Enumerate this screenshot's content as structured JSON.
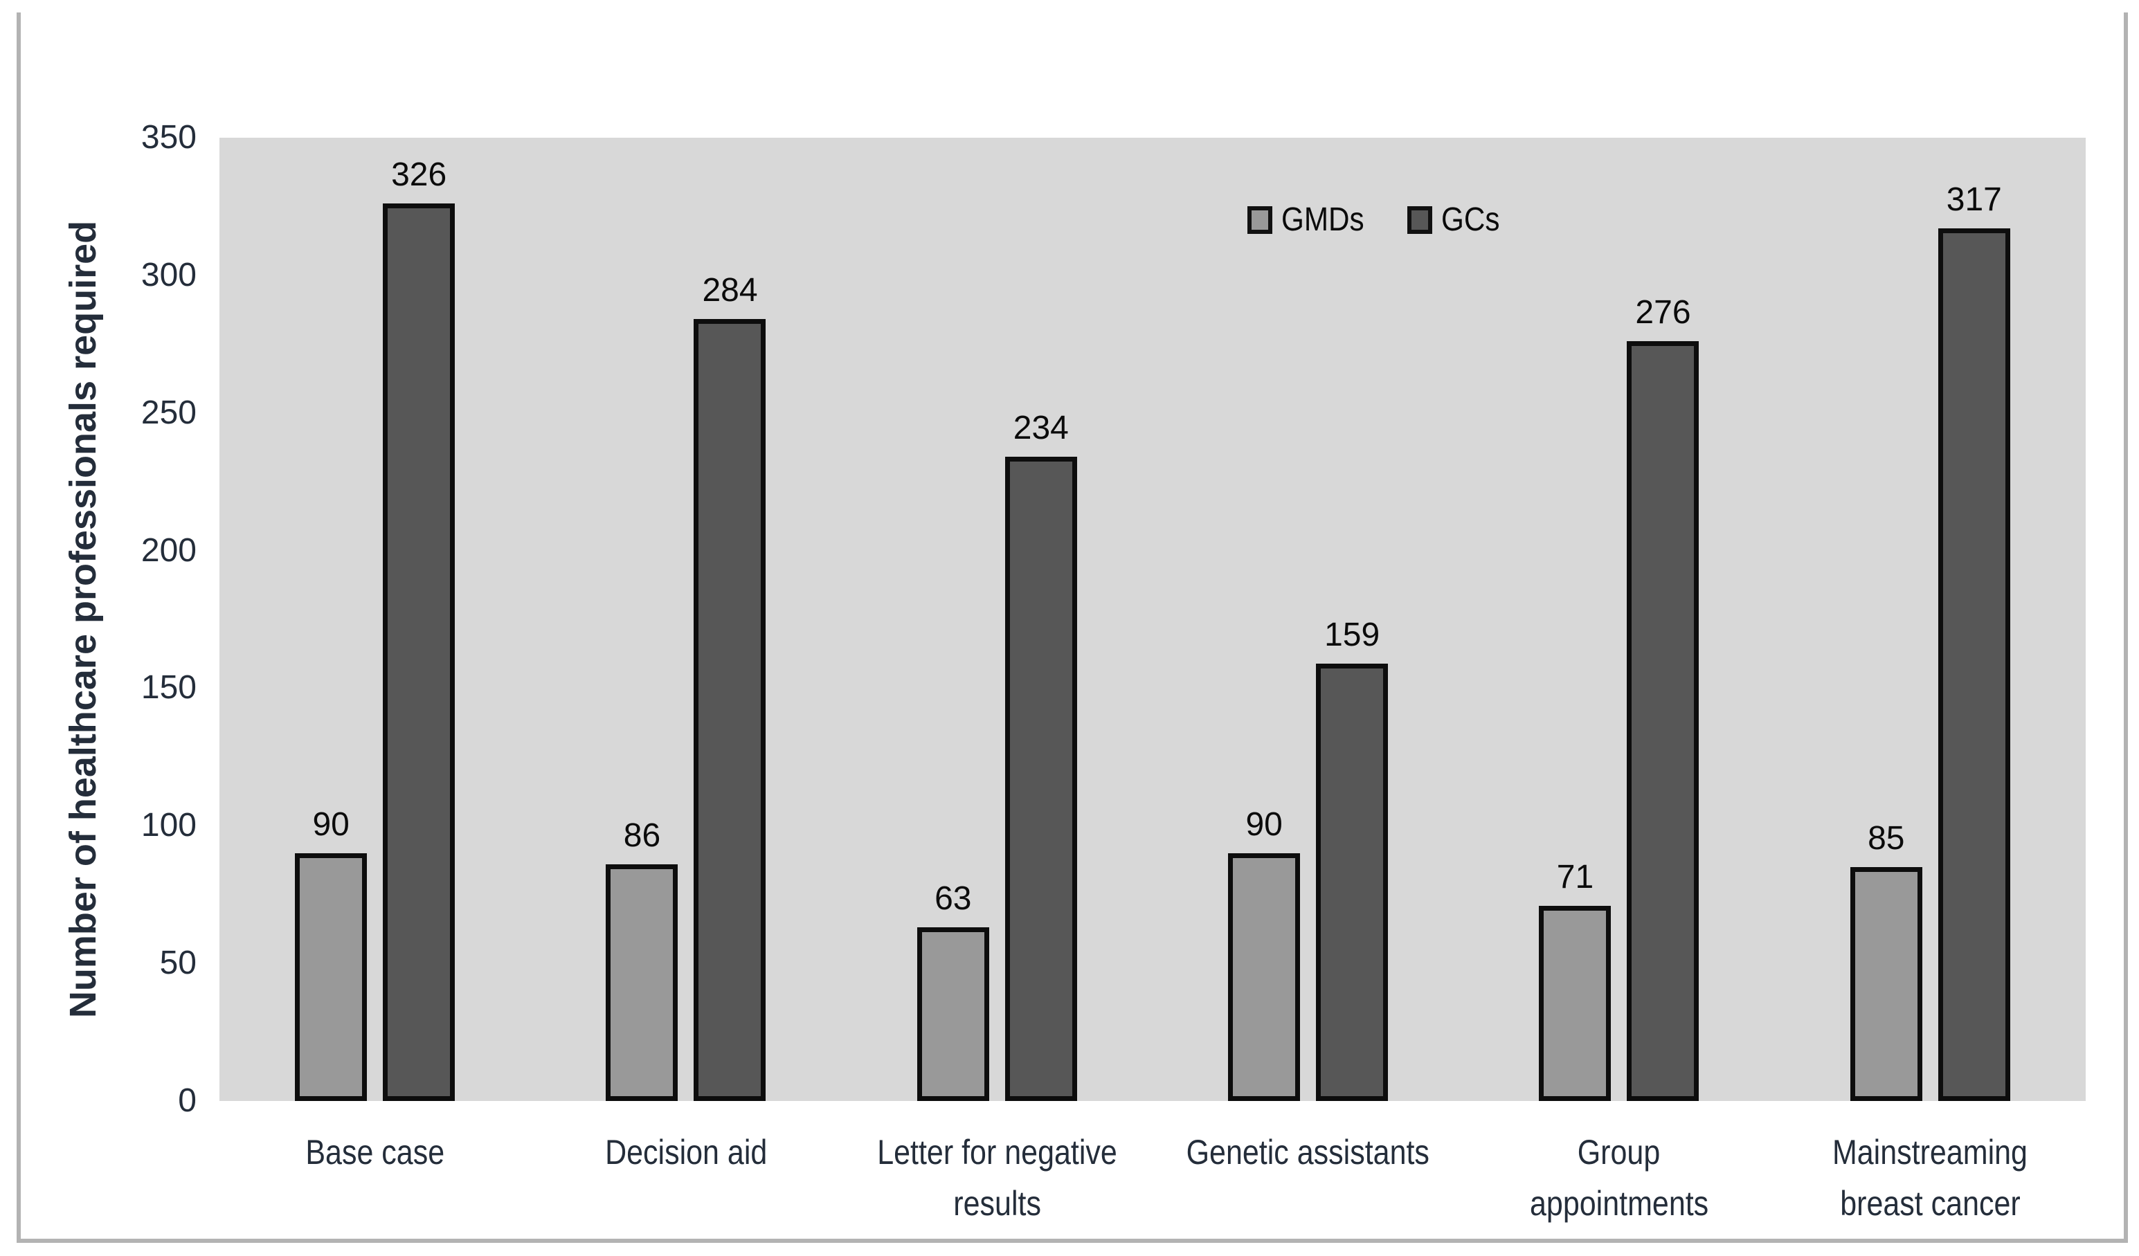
{
  "chart_data": {
    "type": "bar",
    "title": "",
    "xlabel": "",
    "ylabel": "Number of healthcare professionals required",
    "ylim": [
      0,
      350
    ],
    "ytick_step": 50,
    "yticks": [
      0,
      50,
      100,
      150,
      200,
      250,
      300,
      350
    ],
    "grid": false,
    "data_labels_shown": true,
    "legend_position": "top-inside",
    "plot_background": "#d8d8d8",
    "figure_background": "#ffffff",
    "bar_border_color": "#0d0d0d",
    "categories": [
      {
        "label": "Base case",
        "lines": [
          "Base case"
        ]
      },
      {
        "label": "Decision aid",
        "lines": [
          "Decision aid"
        ]
      },
      {
        "label": "Letter for negative results",
        "lines": [
          "Letter for negative",
          "results"
        ]
      },
      {
        "label": "Genetic assistants",
        "lines": [
          "Genetic assistants"
        ]
      },
      {
        "label": "Group appointments",
        "lines": [
          "Group",
          "appointments"
        ]
      },
      {
        "label": "Mainstreaming breast cancer",
        "lines": [
          "Mainstreaming",
          "breast cancer"
        ]
      }
    ],
    "series": [
      {
        "name": "GMDs",
        "color": "#999999",
        "values": [
          90,
          86,
          63,
          90,
          71,
          85
        ]
      },
      {
        "name": "GCs",
        "color": "#575757",
        "values": [
          326,
          284,
          234,
          159,
          276,
          317
        ]
      }
    ]
  }
}
